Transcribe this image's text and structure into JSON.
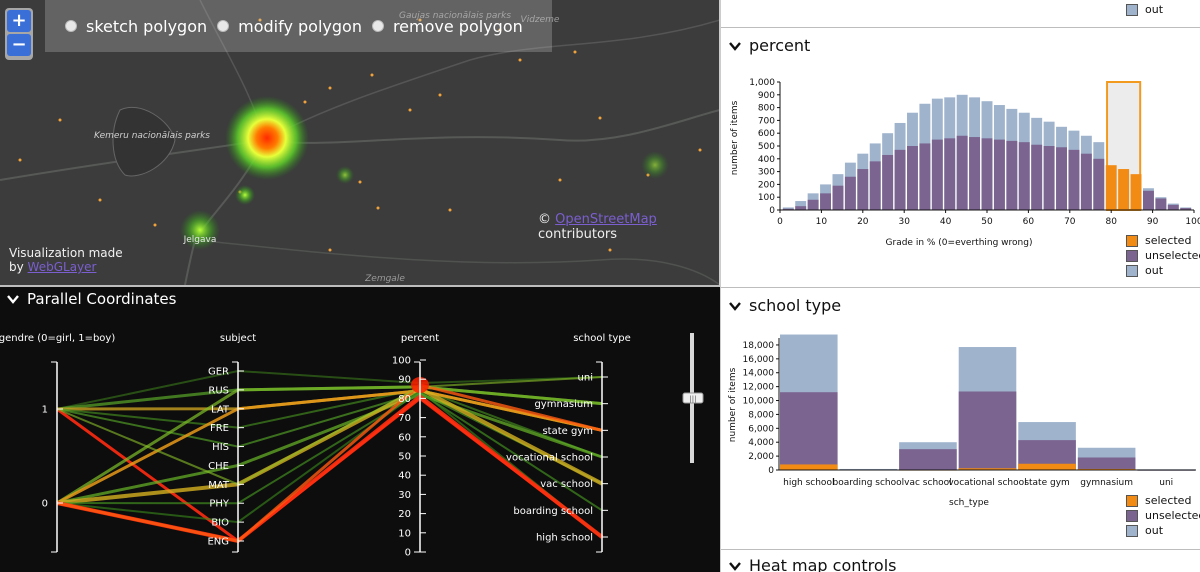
{
  "map": {
    "zoom_in": "+",
    "zoom_out": "−",
    "poly_tools": [
      "sketch polygon",
      "modify polygon",
      "remove polygon"
    ],
    "attribution_prefix": "©",
    "attribution_link": "OpenStreetMap",
    "attribution_suffix": "contributors",
    "credit_line1": "Visualization made",
    "credit_by": "by",
    "credit_link": "WebGLayer",
    "place_labels": [
      "Kemeru nacionālais parks",
      "Jelgava",
      "Zemgale",
      "Gaujas nacionālais parks",
      "Vidzeme"
    ]
  },
  "top_legend": {
    "out": "out"
  },
  "percent_panel": {
    "title": "percent",
    "legend": [
      "selected",
      "unselected",
      "out"
    ]
  },
  "school_panel": {
    "title": "school type",
    "legend": [
      "selected",
      "unselected",
      "out"
    ]
  },
  "heatmap_panel": {
    "title": "Heat map controls"
  },
  "parallel": {
    "title": "Parallel Coordinates",
    "axes": {
      "gendre": {
        "label": "gendre (0=girl, 1=boy)",
        "ticks": [
          "1",
          "0"
        ]
      },
      "subject": {
        "label": "subject",
        "ticks": [
          "GER",
          "RUS",
          "LAT",
          "FRE",
          "HIS",
          "CHE",
          "MAT",
          "PHY",
          "BIO",
          "ENG"
        ]
      },
      "percent": {
        "label": "percent",
        "ticks": [
          "100",
          "90",
          "80",
          "70",
          "60",
          "50",
          "40",
          "30",
          "20",
          "10",
          "0"
        ]
      },
      "school": {
        "label": "school type",
        "ticks": [
          "uni",
          "gymnasium",
          "state gym",
          "vocational school",
          "vac school",
          "boarding school",
          "high school"
        ]
      }
    },
    "slider_handle": "|||"
  },
  "colors": {
    "selected": "#f28b13",
    "unselected": "#7b6590",
    "out": "#9fb3cd",
    "brush": "#f29a1e",
    "map_bg": "#3a3b3a",
    "pc_bg": "#0d0d0d"
  },
  "chart_data": [
    {
      "type": "bar",
      "title": "percent",
      "xlabel": "Grade in % (0=everthing wrong)",
      "ylabel": "number of items",
      "xlim": [
        0,
        100
      ],
      "ylim": [
        0,
        1000
      ],
      "x_ticks": [
        "0",
        "10",
        "20",
        "30",
        "40",
        "50",
        "60",
        "70",
        "80",
        "90",
        "100"
      ],
      "y_ticks": [
        "0",
        "100",
        "200",
        "300",
        "400",
        "500",
        "600",
        "700",
        "800",
        "900",
        "1,000"
      ],
      "brush_range": [
        79,
        87
      ],
      "x": [
        2,
        5,
        8,
        11,
        14,
        17,
        20,
        23,
        26,
        29,
        32,
        35,
        38,
        41,
        44,
        47,
        50,
        53,
        56,
        59,
        62,
        65,
        68,
        71,
        74,
        77,
        80,
        83,
        86,
        89,
        92,
        95,
        98
      ],
      "series": [
        {
          "name": "selected",
          "values": [
            0,
            0,
            0,
            0,
            0,
            0,
            0,
            0,
            0,
            0,
            0,
            0,
            0,
            0,
            0,
            0,
            0,
            0,
            0,
            0,
            0,
            0,
            0,
            0,
            0,
            0,
            350,
            320,
            280,
            0,
            0,
            0,
            0
          ]
        },
        {
          "name": "unselected",
          "values": [
            10,
            30,
            80,
            130,
            190,
            260,
            320,
            380,
            430,
            470,
            500,
            520,
            550,
            560,
            580,
            570,
            560,
            550,
            540,
            530,
            510,
            500,
            490,
            470,
            440,
            400,
            0,
            0,
            0,
            150,
            90,
            40,
            15
          ]
        },
        {
          "name": "out",
          "values": [
            20,
            70,
            130,
            200,
            280,
            370,
            440,
            520,
            600,
            680,
            760,
            830,
            870,
            880,
            900,
            880,
            850,
            820,
            790,
            760,
            720,
            690,
            650,
            620,
            580,
            530,
            0,
            0,
            0,
            170,
            100,
            50,
            20
          ]
        }
      ]
    },
    {
      "type": "bar",
      "title": "school type",
      "xlabel": "sch_type",
      "ylabel": "number of items",
      "ylim": [
        0,
        19000
      ],
      "y_ticks": [
        "0",
        "2,000",
        "4,000",
        "6,000",
        "8,000",
        "10,000",
        "12,000",
        "14,000",
        "16,000",
        "18,000"
      ],
      "categories": [
        "high school",
        "boarding school",
        "vac school",
        "vocational school",
        "state gym",
        "gymnasium",
        "uni"
      ],
      "series": [
        {
          "name": "selected",
          "values": [
            800,
            0,
            60,
            250,
            900,
            150,
            0
          ]
        },
        {
          "name": "unselected",
          "values": [
            11200,
            80,
            3000,
            11300,
            4300,
            1800,
            40
          ]
        },
        {
          "name": "out",
          "values": [
            19500,
            150,
            4000,
            17700,
            6900,
            3200,
            100
          ]
        }
      ]
    }
  ]
}
